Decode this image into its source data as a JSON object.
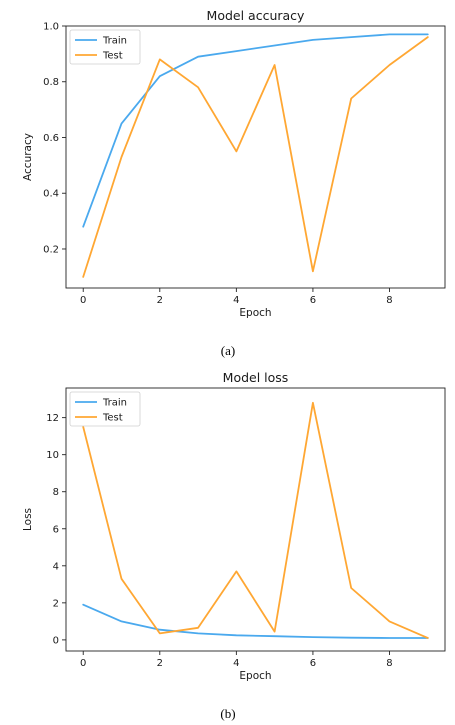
{
  "figure_captions": [
    "(a)",
    "(b)"
  ],
  "colors": {
    "train": "#4aa9ee",
    "test": "#ffa733"
  },
  "chart_data": [
    {
      "type": "line",
      "title": "Model accuracy",
      "xlabel": "Epoch",
      "ylabel": "Accuracy",
      "x": [
        0,
        1,
        2,
        3,
        4,
        5,
        6,
        7,
        8,
        9
      ],
      "xlim": [
        -0.45,
        9.45
      ],
      "ylim": [
        0.06,
        1.0
      ],
      "xticks": [
        0,
        2,
        4,
        6,
        8
      ],
      "yticks": [
        0.2,
        0.4,
        0.6,
        0.8,
        1.0
      ],
      "ytick_labels": [
        "0.2",
        "0.4",
        "0.6",
        "0.8",
        "1.0"
      ],
      "grid": false,
      "legend_position": "top-left",
      "series": [
        {
          "name": "Train",
          "values": [
            0.28,
            0.65,
            0.82,
            0.89,
            0.91,
            0.93,
            0.95,
            0.96,
            0.97,
            0.97
          ]
        },
        {
          "name": "Test",
          "values": [
            0.1,
            0.53,
            0.88,
            0.78,
            0.55,
            0.86,
            0.12,
            0.74,
            0.86,
            0.96
          ]
        }
      ]
    },
    {
      "type": "line",
      "title": "Model loss",
      "xlabel": "Epoch",
      "ylabel": "Loss",
      "x": [
        0,
        1,
        2,
        3,
        4,
        5,
        6,
        7,
        8,
        9
      ],
      "xlim": [
        -0.45,
        9.45
      ],
      "ylim": [
        -0.6,
        13.6
      ],
      "xticks": [
        0,
        2,
        4,
        6,
        8
      ],
      "yticks": [
        0,
        2,
        4,
        6,
        8,
        10,
        12
      ],
      "ytick_labels": [
        "0",
        "2",
        "4",
        "6",
        "8",
        "10",
        "12"
      ],
      "grid": false,
      "legend_position": "top-left",
      "series": [
        {
          "name": "Train",
          "values": [
            1.9,
            1.0,
            0.55,
            0.35,
            0.25,
            0.2,
            0.15,
            0.12,
            0.1,
            0.1
          ]
        },
        {
          "name": "Test",
          "values": [
            11.5,
            3.3,
            0.35,
            0.65,
            3.7,
            0.45,
            12.8,
            2.8,
            1.0,
            0.1
          ]
        }
      ]
    }
  ]
}
